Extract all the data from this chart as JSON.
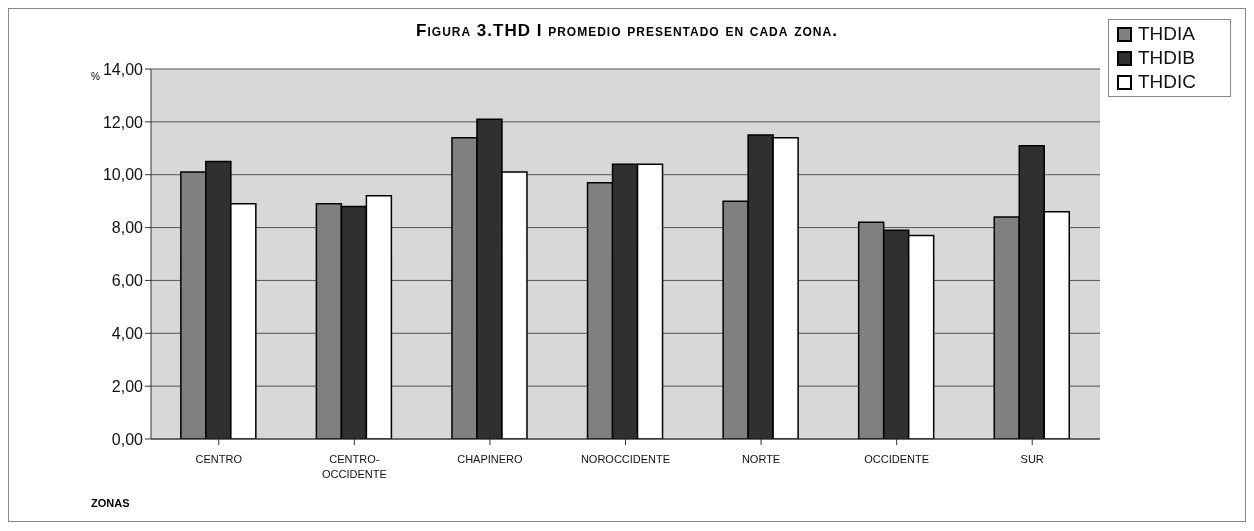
{
  "chart_data": {
    "type": "bar",
    "title": "Figura 3.THD I promedio presentado en cada zona.",
    "xlabel": "ZONAS",
    "ylabel": "%",
    "categories": [
      "CENTRO",
      "CENTRO-OCCIDENTE",
      "CHAPINERO",
      "NOROCCIDENTE",
      "NORTE",
      "OCCIDENTE",
      "SUR"
    ],
    "series": [
      {
        "name": "THDIA",
        "color": "#808080",
        "values": [
          10.1,
          8.9,
          11.4,
          9.7,
          9.0,
          8.2,
          8.4
        ]
      },
      {
        "name": "THDIB",
        "color": "#303030",
        "values": [
          10.5,
          8.8,
          12.1,
          10.4,
          11.5,
          7.9,
          11.1
        ]
      },
      {
        "name": "THDIC",
        "color": "#ffffff",
        "values": [
          8.9,
          9.2,
          10.1,
          10.4,
          11.4,
          7.7,
          8.6
        ]
      }
    ],
    "ylim": [
      0,
      14
    ],
    "yticks": [
      {
        "value": 0,
        "label": "0,00"
      },
      {
        "value": 2,
        "label": "2,00"
      },
      {
        "value": 4,
        "label": "4,00"
      },
      {
        "value": 6,
        "label": "6,00"
      },
      {
        "value": 8,
        "label": "8,00"
      },
      {
        "value": 10,
        "label": "10,00"
      },
      {
        "value": 12,
        "label": "12,00"
      },
      {
        "value": 14,
        "label": "14,00"
      }
    ],
    "grid": "y",
    "legend": "top right"
  }
}
